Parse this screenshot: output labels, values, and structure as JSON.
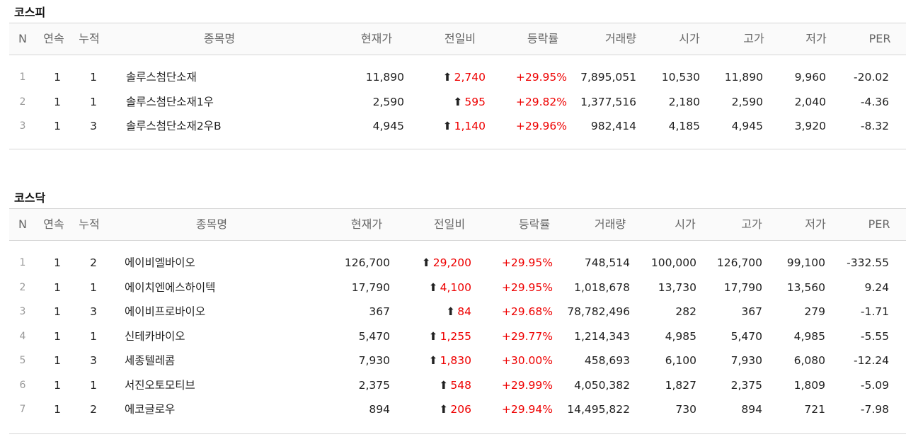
{
  "sections": [
    {
      "title": "코스피",
      "headers": [
        "N",
        "연속",
        "누적",
        "종목명",
        "현재가",
        "전일비",
        "등락률",
        "거래량",
        "시가",
        "고가",
        "저가",
        "PER"
      ],
      "rows": [
        {
          "n": "1",
          "cons": "1",
          "cum": "1",
          "name": "솔루스첨단소재",
          "price": "11,890",
          "change": "2,740",
          "rate": "+29.95%",
          "volume": "7,895,051",
          "open": "10,530",
          "high": "11,890",
          "low": "9,960",
          "per": "-20.02"
        },
        {
          "n": "2",
          "cons": "1",
          "cum": "1",
          "name": "솔루스첨단소재1우",
          "price": "2,590",
          "change": "595",
          "rate": "+29.82%",
          "volume": "1,377,516",
          "open": "2,180",
          "high": "2,590",
          "low": "2,040",
          "per": "-4.36"
        },
        {
          "n": "3",
          "cons": "1",
          "cum": "3",
          "name": "솔루스첨단소재2우B",
          "price": "4,945",
          "change": "1,140",
          "rate": "+29.96%",
          "volume": "982,414",
          "open": "4,185",
          "high": "4,945",
          "low": "3,920",
          "per": "-8.32"
        }
      ]
    },
    {
      "title": "코스닥",
      "headers": [
        "N",
        "연속",
        "누적",
        "종목명",
        "현재가",
        "전일비",
        "등락률",
        "거래량",
        "시가",
        "고가",
        "저가",
        "PER"
      ],
      "rows": [
        {
          "n": "1",
          "cons": "1",
          "cum": "2",
          "name": "에이비엘바이오",
          "price": "126,700",
          "change": "29,200",
          "rate": "+29.95%",
          "volume": "748,514",
          "open": "100,000",
          "high": "126,700",
          "low": "99,100",
          "per": "-332.55"
        },
        {
          "n": "2",
          "cons": "1",
          "cum": "1",
          "name": "에이치엔에스하이텍",
          "price": "17,790",
          "change": "4,100",
          "rate": "+29.95%",
          "volume": "1,018,678",
          "open": "13,730",
          "high": "17,790",
          "low": "13,560",
          "per": "9.24"
        },
        {
          "n": "3",
          "cons": "1",
          "cum": "3",
          "name": "에이비프로바이오",
          "price": "367",
          "change": "84",
          "rate": "+29.68%",
          "volume": "78,782,496",
          "open": "282",
          "high": "367",
          "low": "279",
          "per": "-1.71"
        },
        {
          "n": "4",
          "cons": "1",
          "cum": "1",
          "name": "신테카바이오",
          "price": "5,470",
          "change": "1,255",
          "rate": "+29.77%",
          "volume": "1,214,343",
          "open": "4,985",
          "high": "5,470",
          "low": "4,985",
          "per": "-5.55"
        },
        {
          "n": "5",
          "cons": "1",
          "cum": "3",
          "name": "세종텔레콤",
          "price": "7,930",
          "change": "1,830",
          "rate": "+30.00%",
          "volume": "458,693",
          "open": "6,100",
          "high": "7,930",
          "low": "6,080",
          "per": "-12.24"
        },
        {
          "n": "6",
          "cons": "1",
          "cum": "1",
          "name": "서진오토모티브",
          "price": "2,375",
          "change": "548",
          "rate": "+29.99%",
          "volume": "4,050,382",
          "open": "1,827",
          "high": "2,375",
          "low": "1,809",
          "per": "-5.09"
        },
        {
          "n": "7",
          "cons": "1",
          "cum": "2",
          "name": "에코글로우",
          "price": "894",
          "change": "206",
          "rate": "+29.94%",
          "volume": "14,495,822",
          "open": "730",
          "high": "894",
          "low": "721",
          "per": "-7.98"
        }
      ]
    }
  ],
  "colors": {
    "up": "#e00000",
    "header_text": "#666666",
    "border": "#d6d6d6"
  },
  "icons": {
    "change_up": "arrow-up-icon"
  }
}
